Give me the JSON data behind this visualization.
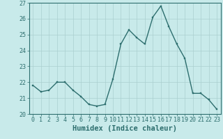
{
  "x": [
    0,
    1,
    2,
    3,
    4,
    5,
    6,
    7,
    8,
    9,
    10,
    11,
    12,
    13,
    14,
    15,
    16,
    17,
    18,
    19,
    20,
    21,
    22,
    23
  ],
  "y": [
    21.8,
    21.4,
    21.5,
    22.0,
    22.0,
    21.5,
    21.1,
    20.6,
    20.5,
    20.6,
    22.2,
    24.4,
    25.3,
    24.8,
    24.4,
    26.1,
    26.8,
    25.5,
    24.4,
    23.5,
    21.3,
    21.3,
    20.9,
    20.3
  ],
  "xlabel": "Humidex (Indice chaleur)",
  "ylim": [
    20,
    27
  ],
  "xlim": [
    -0.5,
    23.5
  ],
  "yticks": [
    20,
    21,
    22,
    23,
    24,
    25,
    26,
    27
  ],
  "xticks": [
    0,
    1,
    2,
    3,
    4,
    5,
    6,
    7,
    8,
    9,
    10,
    11,
    12,
    13,
    14,
    15,
    16,
    17,
    18,
    19,
    20,
    21,
    22,
    23
  ],
  "line_color": "#2d6e6e",
  "marker_color": "#2d6e6e",
  "bg_color": "#c8eaea",
  "grid_color": "#aacfcf",
  "axis_color": "#2d6e6e",
  "xlabel_fontsize": 7.5,
  "tick_fontsize": 6.0,
  "marker_size": 2.0,
  "line_width": 1.0
}
